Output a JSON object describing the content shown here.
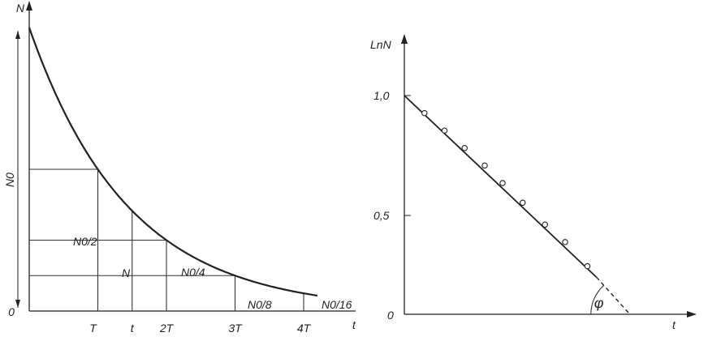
{
  "chart_data": [
    {
      "type": "line",
      "title": "",
      "xlabel": "t",
      "ylabel": "N",
      "y_tick": "0",
      "y_start_label": "N0",
      "x_ticks": [
        "T",
        "t",
        "2T",
        "3T",
        "4T"
      ],
      "annotations": {
        "half": "N0/2",
        "n": "N",
        "quarter": "N0/4",
        "eighth": "N0/8",
        "sixteenth": "N0/16"
      },
      "series": [
        {
          "x": [
            0,
            0.5,
            1,
            1.5,
            2,
            2.5,
            3,
            3.5,
            4,
            4.2
          ],
          "y": [
            1.0,
            0.707,
            0.5,
            0.354,
            0.25,
            0.177,
            0.125,
            0.088,
            0.0625,
            0.054
          ]
        }
      ],
      "gridlines": {
        "horizontal_at_y": [
          0.5,
          0.25,
          0.125
        ],
        "vertical_at_x": [
          1,
          2,
          3,
          4
        ],
        "t_marker_x": 1.5
      },
      "xlim": [
        0,
        4.5
      ],
      "ylim": [
        0,
        1.0
      ]
    },
    {
      "type": "scatter",
      "title": "",
      "xlabel": "t",
      "ylabel": "LnN",
      "y_ticks": [
        "1,0",
        "0,5"
      ],
      "origin_label": "0",
      "angle_label": "φ",
      "y_tick_values": [
        1.0,
        0.5
      ],
      "points": {
        "x": [
          0.09,
          0.18,
          0.27,
          0.36,
          0.44,
          0.53,
          0.63,
          0.72,
          0.82
        ],
        "y": [
          0.92,
          0.84,
          0.76,
          0.68,
          0.6,
          0.51,
          0.41,
          0.33,
          0.22
        ]
      },
      "fit_line": {
        "x0": 0.0,
        "y0": 1.0,
        "x1": 0.86,
        "y1": 0.17
      },
      "extrapolation": {
        "x0": 0.86,
        "y0": 0.17,
        "x1": 1.01,
        "y1": 0.0
      },
      "xlim": [
        0,
        1.28
      ],
      "ylim": [
        0,
        1.22
      ]
    }
  ]
}
